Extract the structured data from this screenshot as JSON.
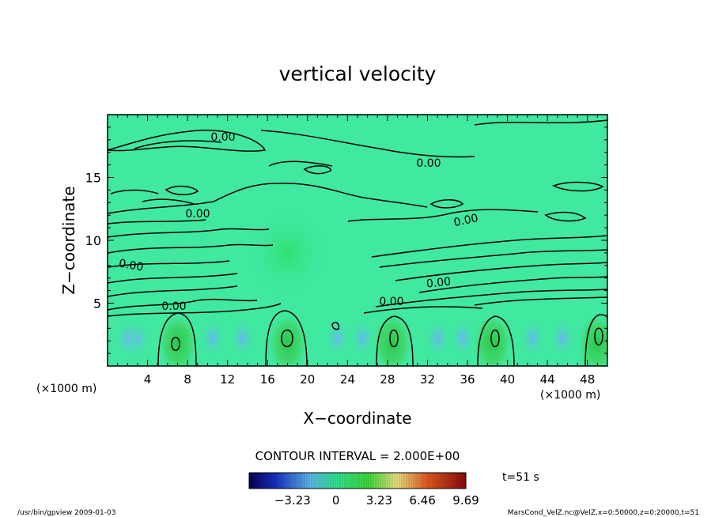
{
  "chart_data": {
    "type": "heatmap",
    "title": "vertical velocity",
    "xlabel": "X−coordinate",
    "ylabel": "Z−coordinate",
    "x_unit_left": "(×1000 m)",
    "x_unit_right": "(×1000 m)",
    "xlim": [
      0,
      50
    ],
    "ylim": [
      0,
      20
    ],
    "x_ticks": [
      4,
      8,
      12,
      16,
      20,
      24,
      28,
      32,
      36,
      40,
      44,
      48
    ],
    "y_ticks": [
      5,
      10,
      15
    ],
    "contour_interval_text": "CONTOUR INTERVAL = 2.000E+00",
    "contour_labels": [
      "0.00",
      "0.00",
      "0.00",
      "0.00",
      "0.00",
      "0.00",
      "0.00",
      "0.00"
    ],
    "colorbar": {
      "range": [
        -6.46,
        9.69
      ],
      "ticks": [
        -3.23,
        0,
        3.23,
        6.46,
        9.69
      ],
      "tick_labels": [
        "−3.23",
        "0",
        "3.23",
        "6.46",
        "9.69"
      ]
    },
    "updraft_columns_x": [
      7,
      18,
      28.5,
      38.5,
      49
    ],
    "time_label": "t=51 s",
    "footer_left": "/usr/bin/gpview   2009-01-03",
    "footer_right": "MarsCond_VelZ.nc@VelZ,x=0:50000,z=0:20000,t=51"
  }
}
